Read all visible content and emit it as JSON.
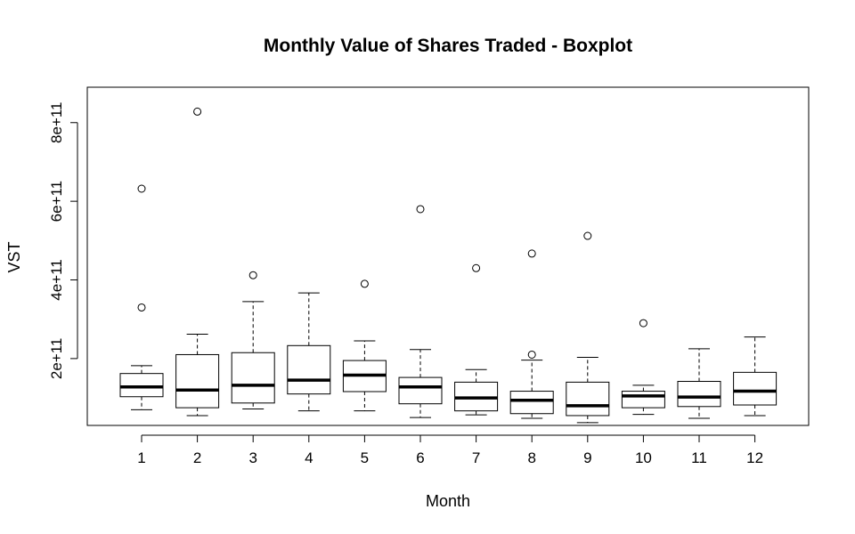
{
  "chart_data": {
    "type": "boxplot",
    "title": "Monthly Value of Shares Traded - Boxplot",
    "xlabel": "Month",
    "ylabel": "VST",
    "categories": [
      "1",
      "2",
      "3",
      "4",
      "5",
      "6",
      "7",
      "8",
      "9",
      "10",
      "11",
      "12"
    ],
    "y_ticks": [
      200000000000,
      400000000000,
      600000000000,
      800000000000
    ],
    "y_tick_labels": [
      "2e+11",
      "4e+11",
      "6e+11",
      "8e+11"
    ],
    "ylim": [
      30000000000,
      890000000000
    ],
    "grid": false,
    "boxes": [
      {
        "month": "1",
        "whisker_low": 70000000000,
        "q1": 103000000000,
        "median": 128000000000,
        "q3": 162000000000,
        "whisker_high": 182000000000,
        "outliers": [
          330000000000,
          632000000000
        ]
      },
      {
        "month": "2",
        "whisker_low": 55000000000,
        "q1": 75000000000,
        "median": 120000000000,
        "q3": 210000000000,
        "whisker_high": 262000000000,
        "outliers": [
          828000000000
        ]
      },
      {
        "month": "3",
        "whisker_low": 72000000000,
        "q1": 87000000000,
        "median": 132000000000,
        "q3": 215000000000,
        "whisker_high": 345000000000,
        "outliers": [
          412000000000
        ]
      },
      {
        "month": "4",
        "whisker_low": 67000000000,
        "q1": 110000000000,
        "median": 145000000000,
        "q3": 233000000000,
        "whisker_high": 367000000000,
        "outliers": []
      },
      {
        "month": "5",
        "whisker_low": 67000000000,
        "q1": 116000000000,
        "median": 158000000000,
        "q3": 195000000000,
        "whisker_high": 245000000000,
        "outliers": [
          390000000000
        ]
      },
      {
        "month": "6",
        "whisker_low": 50000000000,
        "q1": 85000000000,
        "median": 128000000000,
        "q3": 152000000000,
        "whisker_high": 223000000000,
        "outliers": [
          580000000000
        ]
      },
      {
        "month": "7",
        "whisker_low": 57000000000,
        "q1": 67000000000,
        "median": 100000000000,
        "q3": 140000000000,
        "whisker_high": 172000000000,
        "outliers": [
          430000000000
        ]
      },
      {
        "month": "8",
        "whisker_low": 48000000000,
        "q1": 60000000000,
        "median": 94000000000,
        "q3": 117000000000,
        "whisker_high": 196000000000,
        "outliers": [
          210000000000,
          467000000000
        ]
      },
      {
        "month": "9",
        "whisker_low": 37000000000,
        "q1": 55000000000,
        "median": 80000000000,
        "q3": 140000000000,
        "whisker_high": 203000000000,
        "outliers": [
          512000000000
        ]
      },
      {
        "month": "10",
        "whisker_low": 58000000000,
        "q1": 75000000000,
        "median": 105000000000,
        "q3": 117000000000,
        "whisker_high": 132000000000,
        "outliers": [
          290000000000
        ]
      },
      {
        "month": "11",
        "whisker_low": 48000000000,
        "q1": 78000000000,
        "median": 102000000000,
        "q3": 142000000000,
        "whisker_high": 225000000000,
        "outliers": []
      },
      {
        "month": "12",
        "whisker_low": 55000000000,
        "q1": 82000000000,
        "median": 117000000000,
        "q3": 165000000000,
        "whisker_high": 255000000000,
        "outliers": []
      }
    ]
  }
}
